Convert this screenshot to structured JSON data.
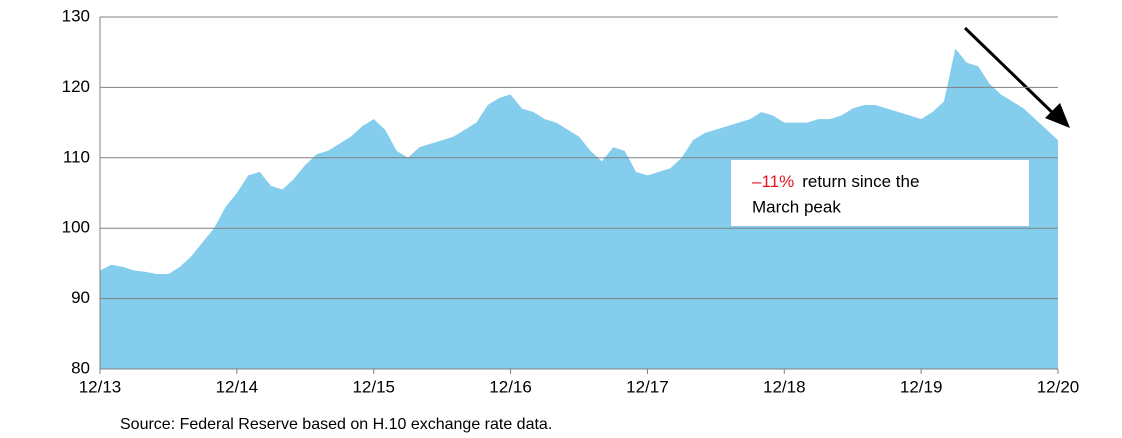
{
  "chart_data": {
    "type": "area",
    "color": "#84cdec",
    "categories": [
      "12/13",
      null,
      null,
      null,
      null,
      null,
      null,
      null,
      null,
      null,
      null,
      null,
      "12/14",
      null,
      null,
      null,
      null,
      null,
      null,
      null,
      null,
      null,
      null,
      null,
      "12/15",
      null,
      null,
      null,
      null,
      null,
      null,
      null,
      null,
      null,
      null,
      null,
      "12/16",
      null,
      null,
      null,
      null,
      null,
      null,
      null,
      null,
      null,
      null,
      null,
      "12/17",
      null,
      null,
      null,
      null,
      null,
      null,
      null,
      null,
      null,
      null,
      null,
      "12/18",
      null,
      null,
      null,
      null,
      null,
      null,
      null,
      null,
      null,
      null,
      null,
      "12/19",
      null,
      null,
      null,
      null,
      null,
      null,
      null,
      null,
      null,
      null,
      null,
      "12/20"
    ],
    "values": [
      94,
      94.8,
      94.5,
      94,
      93.8,
      93.5,
      93.5,
      94.5,
      96,
      98,
      100,
      103,
      105,
      107.5,
      108,
      106,
      105.5,
      107,
      109,
      110.5,
      111,
      112,
      113,
      114.5,
      115.5,
      114,
      111,
      110,
      111.5,
      112,
      112.5,
      113,
      114,
      115,
      117.5,
      118.5,
      119,
      117,
      116.5,
      115.5,
      115,
      114,
      113,
      111,
      109.5,
      111.5,
      111,
      108,
      107.5,
      108,
      108.5,
      110,
      112.5,
      113.5,
      114,
      114.5,
      115,
      115.5,
      116.5,
      116,
      115,
      115,
      115,
      115.5,
      115.5,
      116,
      117,
      117.5,
      117.5,
      117,
      116.5,
      116,
      115.5,
      116.5,
      118,
      125.5,
      123.5,
      123,
      120.5,
      119,
      118,
      117,
      115.5,
      114,
      112.5
    ],
    "ylim": [
      80,
      130
    ],
    "yticks": [
      80,
      90,
      100,
      110,
      120,
      130
    ],
    "grid": true,
    "annotation": {
      "highlight": "–11%",
      "lines": [
        "return since the",
        "March peak"
      ]
    },
    "source": "Source:  Federal Reserve based on H.10 exchange rate data."
  }
}
